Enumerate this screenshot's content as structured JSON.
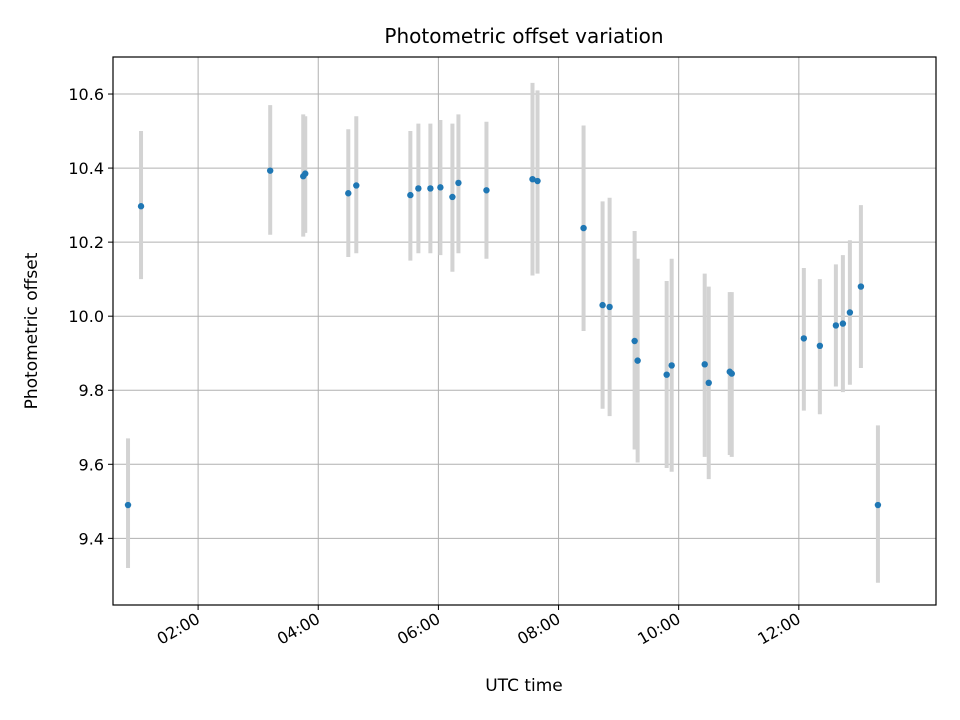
{
  "chart_data": {
    "type": "scatter",
    "title": "Photometric offset variation",
    "xlabel": "UTC time",
    "ylabel": "Photometric offset",
    "xlim": [
      "00:35",
      "14:17"
    ],
    "ylim": [
      9.22,
      10.7
    ],
    "grid": true,
    "x_ticks": [
      "02:00",
      "04:00",
      "06:00",
      "08:00",
      "10:00",
      "12:00"
    ],
    "y_ticks": [
      "9.4",
      "9.6",
      "9.8",
      "10.0",
      "10.2",
      "10.4",
      "10.6"
    ],
    "colors": {
      "point": "#1f77b4",
      "errorbar": "#d3d3d3",
      "grid": "#b0b0b0"
    },
    "points": [
      {
        "x": "00:50",
        "y": 9.49,
        "err_low": 9.32,
        "err_high": 9.67
      },
      {
        "x": "01:03",
        "y": 10.297,
        "err_low": 10.1,
        "err_high": 10.5
      },
      {
        "x": "03:12",
        "y": 10.393,
        "err_low": 10.22,
        "err_high": 10.57
      },
      {
        "x": "03:45",
        "y": 10.378,
        "err_low": 10.215,
        "err_high": 10.545
      },
      {
        "x": "03:47",
        "y": 10.385,
        "err_low": 10.225,
        "err_high": 10.54
      },
      {
        "x": "04:30",
        "y": 10.332,
        "err_low": 10.16,
        "err_high": 10.505
      },
      {
        "x": "04:38",
        "y": 10.353,
        "err_low": 10.17,
        "err_high": 10.54
      },
      {
        "x": "05:32",
        "y": 10.327,
        "err_low": 10.15,
        "err_high": 10.5
      },
      {
        "x": "05:40",
        "y": 10.345,
        "err_low": 10.17,
        "err_high": 10.52
      },
      {
        "x": "05:52",
        "y": 10.345,
        "err_low": 10.17,
        "err_high": 10.52
      },
      {
        "x": "06:02",
        "y": 10.348,
        "err_low": 10.165,
        "err_high": 10.53
      },
      {
        "x": "06:14",
        "y": 10.322,
        "err_low": 10.12,
        "err_high": 10.52
      },
      {
        "x": "06:20",
        "y": 10.36,
        "err_low": 10.17,
        "err_high": 10.545
      },
      {
        "x": "06:48",
        "y": 10.34,
        "err_low": 10.155,
        "err_high": 10.525
      },
      {
        "x": "07:34",
        "y": 10.37,
        "err_low": 10.11,
        "err_high": 10.63
      },
      {
        "x": "07:39",
        "y": 10.365,
        "err_low": 10.115,
        "err_high": 10.61
      },
      {
        "x": "08:25",
        "y": 10.238,
        "err_low": 9.96,
        "err_high": 10.515
      },
      {
        "x": "08:44",
        "y": 10.03,
        "err_low": 9.75,
        "err_high": 10.31
      },
      {
        "x": "08:51",
        "y": 10.025,
        "err_low": 9.73,
        "err_high": 10.32
      },
      {
        "x": "09:16",
        "y": 9.933,
        "err_low": 9.64,
        "err_high": 10.23
      },
      {
        "x": "09:19",
        "y": 9.88,
        "err_low": 9.605,
        "err_high": 10.155
      },
      {
        "x": "09:48",
        "y": 9.842,
        "err_low": 9.59,
        "err_high": 10.095
      },
      {
        "x": "09:53",
        "y": 9.867,
        "err_low": 9.58,
        "err_high": 10.155
      },
      {
        "x": "10:26",
        "y": 9.87,
        "err_low": 9.62,
        "err_high": 10.115
      },
      {
        "x": "10:30",
        "y": 9.82,
        "err_low": 9.56,
        "err_high": 10.08
      },
      {
        "x": "10:51",
        "y": 9.85,
        "err_low": 9.625,
        "err_high": 10.065
      },
      {
        "x": "10:53",
        "y": 9.845,
        "err_low": 9.62,
        "err_high": 10.065
      },
      {
        "x": "12:05",
        "y": 9.94,
        "err_low": 9.745,
        "err_high": 10.13
      },
      {
        "x": "12:21",
        "y": 9.92,
        "err_low": 9.735,
        "err_high": 10.1
      },
      {
        "x": "12:37",
        "y": 9.975,
        "err_low": 9.81,
        "err_high": 10.14
      },
      {
        "x": "12:44",
        "y": 9.98,
        "err_low": 9.795,
        "err_high": 10.165
      },
      {
        "x": "12:51",
        "y": 10.01,
        "err_low": 9.815,
        "err_high": 10.205
      },
      {
        "x": "13:02",
        "y": 10.08,
        "err_low": 9.86,
        "err_high": 10.3
      },
      {
        "x": "13:19",
        "y": 9.49,
        "err_low": 9.28,
        "err_high": 9.705
      }
    ]
  }
}
